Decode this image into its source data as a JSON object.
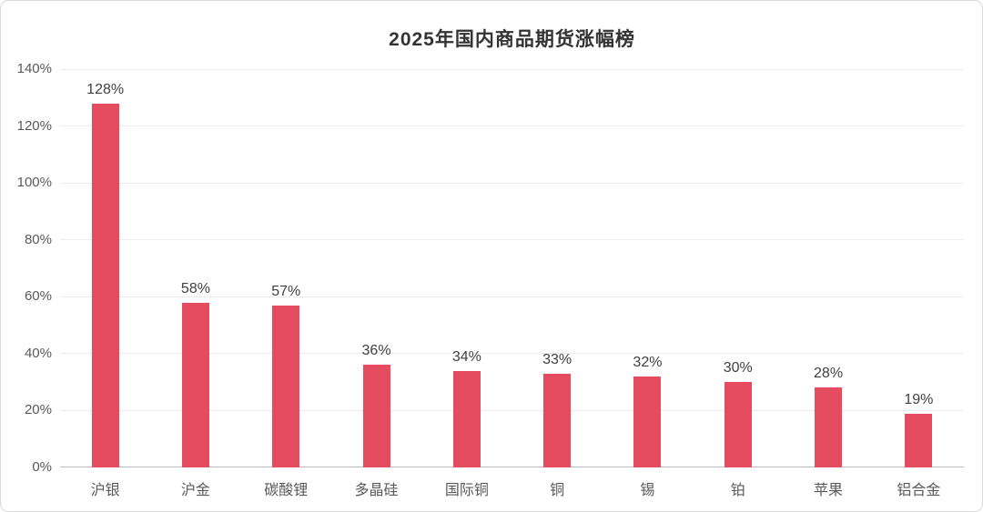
{
  "chart_data": {
    "type": "bar",
    "title": "2025年国内商品期货涨幅榜",
    "categories": [
      "沪银",
      "沪金",
      "碳酸锂",
      "多晶硅",
      "国际铜",
      "铜",
      "锡",
      "铂",
      "苹果",
      "铝合金"
    ],
    "values": [
      128,
      58,
      57,
      36,
      34,
      33,
      32,
      30,
      28,
      19
    ],
    "data_labels": [
      "128%",
      "58%",
      "57%",
      "36%",
      "34%",
      "33%",
      "32%",
      "30%",
      "28%",
      "19%"
    ],
    "xlabel": "",
    "ylabel": "",
    "ylim": [
      0,
      140
    ],
    "ytick_labels": [
      "0%",
      "20%",
      "40%",
      "60%",
      "80%",
      "100%",
      "120%",
      "140%"
    ],
    "ytick_values": [
      0,
      20,
      40,
      60,
      80,
      100,
      120,
      140
    ],
    "grid": true,
    "legend": "none",
    "bar_color": "#e64c5f"
  },
  "colors": {
    "bar": "#e64c5f",
    "title_text": "#333333",
    "axis_text": "#595959",
    "data_label_text": "#404040",
    "gridline": "#ececec",
    "axis_line": "#bdbdbd",
    "frame_border": "#d9d9d9",
    "background": "#ffffff"
  }
}
